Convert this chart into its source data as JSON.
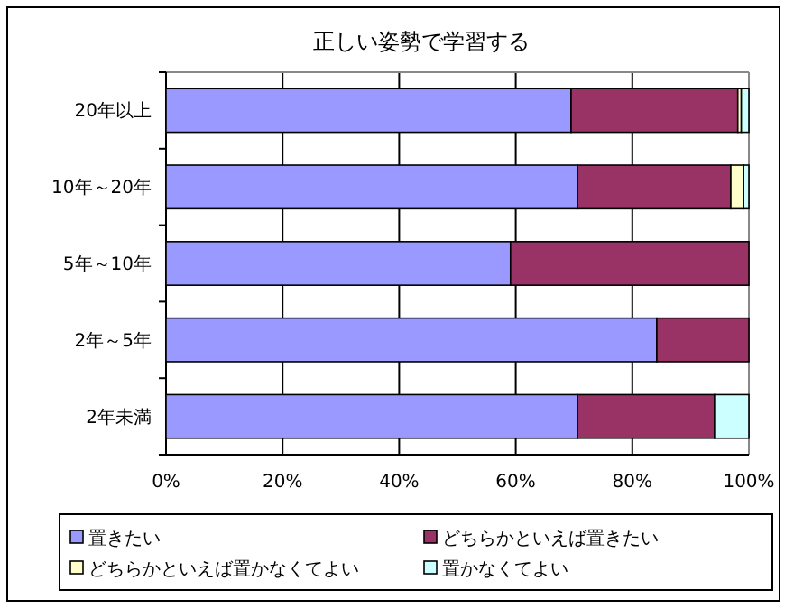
{
  "chart_data": {
    "type": "bar",
    "orientation": "horizontal",
    "stacked": true,
    "title": "正しい姿勢で学習する",
    "categories": [
      "20年以上",
      "10年～20年",
      "5年～10年",
      "2年～5年",
      "2年未満"
    ],
    "series": [
      {
        "name": "置きたい",
        "color": "#9999ff",
        "values": [
          69.5,
          70.6,
          59.1,
          84.2,
          70.6
        ]
      },
      {
        "name": "どちらかといえば置きたい",
        "color": "#993366",
        "values": [
          28.6,
          26.3,
          40.9,
          15.8,
          23.5
        ]
      },
      {
        "name": "どちらかといえば置かなくてよい",
        "color": "#ffffcc",
        "values": [
          0.6,
          2.2,
          0,
          0,
          0
        ]
      },
      {
        "name": "置かなくてよい",
        "color": "#ccffff",
        "values": [
          1.3,
          0.9,
          0,
          0,
          5.9
        ]
      }
    ],
    "xlim": [
      0,
      100
    ],
    "xticks": [
      {
        "value": 0,
        "label": "0%"
      },
      {
        "value": 20,
        "label": "20%"
      },
      {
        "value": 40,
        "label": "40%"
      },
      {
        "value": 60,
        "label": "60%"
      },
      {
        "value": 80,
        "label": "80%"
      },
      {
        "value": 100,
        "label": "100%"
      }
    ],
    "grid": "x",
    "legend": "bottom"
  }
}
